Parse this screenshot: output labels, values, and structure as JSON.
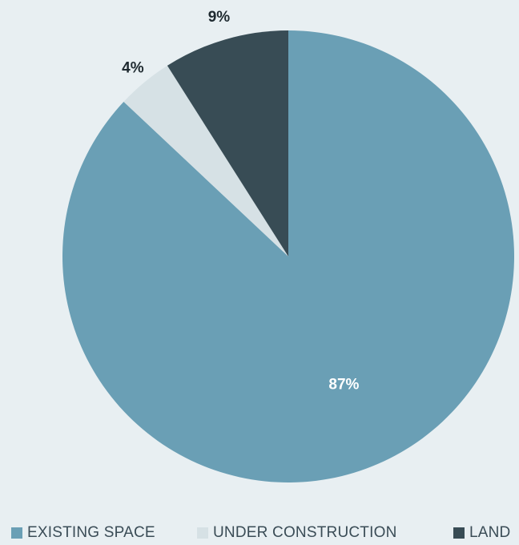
{
  "chart_data": {
    "type": "pie",
    "title": "",
    "slices": [
      {
        "name": "EXISTING SPACE",
        "value": 87,
        "label": "87%",
        "color": "#6a9fb5",
        "label_color": "#ffffff"
      },
      {
        "name": "UNDER CONSTRUCTION",
        "value": 4,
        "label": "4%",
        "color": "#d6e1e5",
        "label_color": "#1f2a30"
      },
      {
        "name": "LAND",
        "value": 9,
        "label": "9%",
        "color": "#384c55",
        "label_color": "#1f2a30"
      }
    ],
    "start_angle_deg": 0,
    "direction": "clockwise",
    "legend_position": "bottom"
  }
}
